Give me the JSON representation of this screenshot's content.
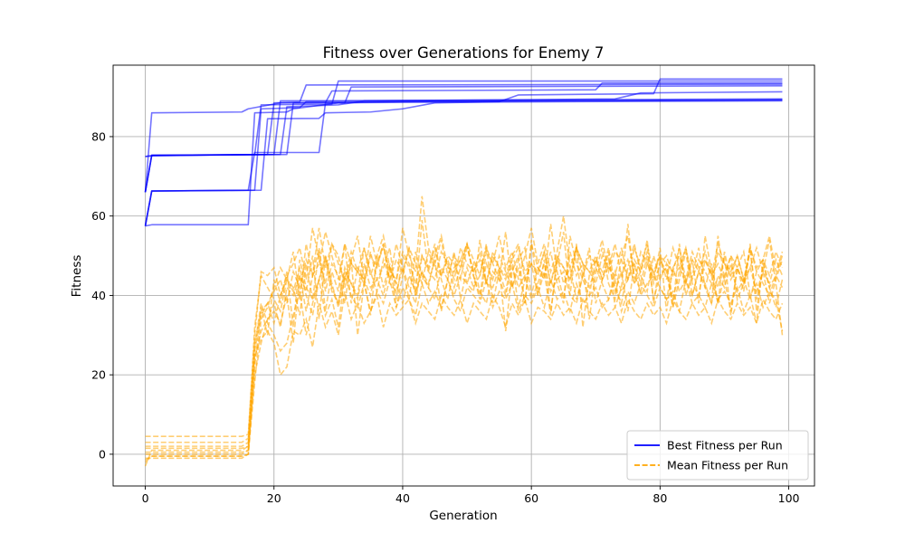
{
  "chart_data": {
    "type": "line",
    "title": "Fitness over Generations for Enemy 7",
    "xlabel": "Generation",
    "ylabel": "Fitness",
    "xlim": [
      -5,
      104
    ],
    "ylim": [
      -8,
      98
    ],
    "xticks": [
      0,
      20,
      40,
      60,
      80,
      100
    ],
    "yticks": [
      0,
      20,
      40,
      60,
      80
    ],
    "grid": true,
    "legend_position": "bottom-right",
    "legend": [
      {
        "label": "Best Fitness per Run",
        "color": "#0000ff",
        "style": "solid"
      },
      {
        "label": "Mean Fitness per Run",
        "color": "#ffa500",
        "style": "dashed"
      }
    ],
    "best_color": "#0000ff",
    "mean_color": "#ffa500",
    "generations": 100,
    "best_runs": [
      [
        [
          0,
          75
        ],
        [
          1,
          75.2
        ],
        [
          17,
          75.5
        ],
        [
          18,
          88
        ],
        [
          29,
          88.2
        ],
        [
          30,
          94
        ],
        [
          99,
          94
        ]
      ],
      [
        [
          0,
          66
        ],
        [
          1,
          86
        ],
        [
          15,
          86.2
        ],
        [
          16,
          87
        ],
        [
          21,
          88.5
        ],
        [
          99,
          89
        ]
      ],
      [
        [
          0,
          57.5
        ],
        [
          1,
          57.8
        ],
        [
          16,
          57.8
        ],
        [
          17,
          86
        ],
        [
          22,
          86.2
        ],
        [
          23,
          87
        ],
        [
          30,
          88.5
        ],
        [
          40,
          88.8
        ],
        [
          99,
          89.2
        ]
      ],
      [
        [
          0,
          57.5
        ],
        [
          1,
          66.3
        ],
        [
          17,
          66.5
        ],
        [
          18,
          87
        ],
        [
          24,
          87.3
        ],
        [
          25,
          88.8
        ],
        [
          99,
          89.3
        ]
      ],
      [
        [
          0,
          66
        ],
        [
          1,
          75.3
        ],
        [
          20,
          75.5
        ],
        [
          21,
          89
        ],
        [
          99,
          89.5
        ]
      ],
      [
        [
          0,
          57.5
        ],
        [
          1,
          66.3
        ],
        [
          16,
          66.5
        ],
        [
          17,
          76
        ],
        [
          27,
          76
        ],
        [
          28,
          88.5
        ],
        [
          31,
          88.5
        ],
        [
          32,
          92.5
        ],
        [
          99,
          92.8
        ]
      ],
      [
        [
          0,
          66
        ],
        [
          1,
          75.3
        ],
        [
          22,
          75.5
        ],
        [
          23,
          88.5
        ],
        [
          28,
          88.6
        ],
        [
          29,
          91.5
        ],
        [
          70,
          91.8
        ],
        [
          71,
          93.5
        ],
        [
          99,
          93.5
        ]
      ],
      [
        [
          0,
          75
        ],
        [
          1,
          75.2
        ],
        [
          19,
          75.5
        ],
        [
          20,
          88.5
        ],
        [
          24,
          88.7
        ],
        [
          25,
          93
        ],
        [
          99,
          93.2
        ]
      ],
      [
        [
          0,
          57.5
        ],
        [
          1,
          66.3
        ],
        [
          18,
          66.5
        ],
        [
          19,
          84.5
        ],
        [
          27,
          84.6
        ],
        [
          28,
          86
        ],
        [
          35,
          86.2
        ],
        [
          40,
          87
        ],
        [
          45,
          88.5
        ],
        [
          55,
          88.8
        ],
        [
          58,
          90.5
        ],
        [
          79,
          90.8
        ],
        [
          80,
          94.5
        ],
        [
          99,
          94.5
        ]
      ],
      [
        [
          0,
          66
        ],
        [
          1,
          75.3
        ],
        [
          21,
          75.5
        ],
        [
          22,
          87.5
        ],
        [
          30,
          88
        ],
        [
          34,
          89
        ],
        [
          60,
          89.3
        ],
        [
          73,
          89.5
        ],
        [
          77,
          91
        ],
        [
          99,
          91.3
        ]
      ]
    ],
    "mean_runs": [
      [
        -1,
        -1,
        -1,
        -1,
        -1,
        -1,
        -1,
        -1,
        -1,
        -1,
        -1,
        -1,
        -1,
        -1,
        -1,
        -1,
        0,
        24,
        31,
        34,
        36,
        33,
        40,
        28,
        45,
        41,
        50,
        34,
        50,
        43,
        37,
        44,
        49,
        30,
        43,
        51,
        44,
        47,
        52,
        39,
        50,
        47,
        40,
        59,
        46,
        52,
        44,
        39,
        47,
        49,
        43,
        41,
        54,
        43,
        42,
        47,
        31,
        46,
        50,
        38,
        54,
        40,
        49,
        36,
        48,
        56,
        40,
        53,
        32,
        45,
        49,
        44,
        51,
        37,
        42,
        58,
        43,
        46,
        54,
        38,
        49,
        46,
        37,
        53,
        40,
        45,
        52,
        42,
        38,
        55,
        44,
        36,
        47,
        51,
        40,
        33,
        49,
        42,
        37,
        44
      ],
      [
        0,
        0,
        0,
        0,
        0,
        0,
        0,
        0,
        0,
        0,
        0,
        0,
        0,
        0,
        0,
        0,
        1,
        20,
        28,
        34,
        38,
        32,
        42,
        40,
        45,
        36,
        45,
        52,
        41,
        48,
        45,
        38,
        49,
        55,
        44,
        40,
        48,
        53,
        43,
        41,
        47,
        39,
        51,
        45,
        42,
        50,
        55,
        47,
        46,
        49,
        53,
        45,
        40,
        51,
        48,
        44,
        56,
        42,
        47,
        38,
        53,
        47,
        44,
        58,
        46,
        39,
        51,
        45,
        48,
        34,
        46,
        52,
        43,
        39,
        50,
        55,
        45,
        41,
        48,
        44,
        52,
        36,
        47,
        50,
        43,
        49,
        38,
        55,
        46,
        42,
        50,
        35,
        47,
        43,
        51,
        39,
        46,
        54,
        43,
        30
      ],
      [
        2,
        2,
        2,
        2,
        2,
        2,
        2,
        2,
        2,
        2,
        2,
        2,
        2,
        2,
        2,
        2,
        3,
        28,
        36,
        38,
        33,
        40,
        44,
        42,
        35,
        48,
        39,
        44,
        50,
        42,
        38,
        47,
        43,
        40,
        52,
        46,
        41,
        49,
        44,
        53,
        47,
        42,
        38,
        50,
        46,
        44,
        51,
        48,
        42,
        47,
        53,
        45,
        39,
        48,
        44,
        50,
        46,
        42,
        49,
        52,
        40,
        47,
        45,
        51,
        43,
        38,
        55,
        48,
        44,
        40,
        49,
        46,
        52,
        42,
        38,
        47,
        53,
        45,
        41,
        50,
        44,
        48,
        39,
        46,
        52,
        43,
        40,
        49,
        45,
        38,
        51,
        44,
        47,
        41,
        53,
        36,
        48,
        42,
        45,
        50
      ],
      [
        4.5,
        4.5,
        4.5,
        4.5,
        4.5,
        4.5,
        4.5,
        4.5,
        4.5,
        4.5,
        4.5,
        4.5,
        4.5,
        4.5,
        4.5,
        4.5,
        5,
        30,
        46,
        45,
        47,
        40,
        45,
        48,
        52,
        44,
        57,
        49,
        43,
        53,
        50,
        42,
        48,
        46,
        44,
        55,
        48,
        52,
        46,
        44,
        51,
        48,
        43,
        50,
        47,
        53,
        45,
        49,
        44,
        52,
        48,
        46,
        51,
        43,
        50,
        47,
        44,
        49,
        52,
        46,
        48,
        45,
        51,
        43,
        50,
        47,
        44,
        52,
        48,
        46,
        43,
        50,
        47,
        45,
        52,
        44,
        49,
        46,
        51,
        43,
        48,
        50,
        45,
        47,
        52,
        44,
        49,
        46,
        43,
        51,
        48,
        45,
        50,
        44,
        47,
        52,
        46,
        43,
        49,
        45
      ],
      [
        -3,
        1,
        1,
        1,
        1,
        1,
        1,
        1,
        1,
        1,
        1,
        1,
        1,
        1,
        1,
        1,
        2,
        26,
        35,
        38,
        41,
        44,
        38,
        46,
        42,
        49,
        45,
        57,
        47,
        53,
        48,
        44,
        51,
        46,
        43,
        50,
        47,
        53,
        44,
        49,
        46,
        52,
        48,
        43,
        51,
        47,
        45,
        50,
        48,
        44,
        52,
        46,
        49,
        43,
        51,
        47,
        45,
        50,
        53,
        44,
        48,
        46,
        51,
        43,
        49,
        47,
        44,
        52,
        48,
        46,
        50,
        44,
        47,
        53,
        45,
        49,
        43,
        51,
        48,
        46,
        50,
        44,
        52,
        47,
        43,
        49,
        46,
        51,
        45,
        48,
        44,
        50,
        47,
        43,
        52,
        46,
        49,
        45,
        51,
        47
      ],
      [
        -2,
        -0.5,
        -0.5,
        -0.5,
        -0.5,
        -0.5,
        -0.5,
        -0.5,
        -0.5,
        -0.5,
        -0.5,
        -0.5,
        -0.5,
        -0.5,
        -0.5,
        -0.5,
        0,
        18,
        34,
        37,
        42,
        47,
        44,
        51,
        39,
        53,
        45,
        48,
        56,
        50,
        44,
        53,
        48,
        46,
        52,
        45,
        50,
        55,
        47,
        43,
        57,
        50,
        46,
        65,
        52,
        48,
        54,
        45,
        50,
        47,
        53,
        49,
        45,
        52,
        48,
        55,
        47,
        51,
        44,
        50,
        57,
        48,
        53,
        46,
        51,
        60,
        47,
        52,
        45,
        50,
        48,
        54,
        46,
        51,
        49,
        44,
        52,
        47,
        53,
        45,
        50,
        48,
        46,
        52,
        44,
        51,
        47,
        49,
        45,
        53,
        48,
        46,
        50,
        44,
        52,
        47,
        49,
        55,
        46,
        51
      ],
      [
        3,
        3,
        3,
        3,
        3,
        3,
        3,
        3,
        3,
        3,
        3,
        3,
        3,
        3,
        3,
        3,
        4,
        32,
        45,
        42,
        39,
        36,
        44,
        41,
        47,
        40,
        35,
        44,
        49,
        41,
        38,
        46,
        43,
        39,
        48,
        42,
        44,
        40,
        47,
        43,
        38,
        45,
        41,
        46,
        42,
        39,
        47,
        44,
        40,
        45,
        43,
        48,
        41,
        38,
        46,
        44,
        40,
        47,
        42,
        45,
        39,
        43,
        48,
        41,
        44,
        46,
        40,
        38,
        45,
        42,
        47,
        43,
        39,
        46,
        41,
        44,
        48,
        40,
        43,
        45,
        42,
        39,
        47,
        41,
        44,
        40,
        46,
        43,
        38,
        45,
        42,
        48,
        41,
        44,
        39,
        46,
        43,
        40,
        45,
        42
      ],
      [
        0.5,
        0.5,
        0.5,
        0.5,
        0.5,
        0.5,
        0.5,
        0.5,
        0.5,
        0.5,
        0.5,
        0.5,
        0.5,
        0.5,
        0.5,
        0.5,
        1,
        25,
        29,
        31,
        28,
        20,
        22,
        31,
        30,
        34,
        27,
        38,
        32,
        36,
        30,
        41,
        34,
        38,
        33,
        36,
        40,
        32,
        38,
        35,
        37,
        39,
        33,
        38,
        36,
        34,
        40,
        37,
        35,
        39,
        33,
        38,
        36,
        34,
        40,
        37,
        32,
        38,
        35,
        39,
        33,
        37,
        36,
        34,
        38,
        35,
        37,
        33,
        39,
        36,
        34,
        38,
        35,
        37,
        33,
        39,
        36,
        34,
        38,
        35,
        37,
        33,
        39,
        36,
        34,
        38,
        35,
        37,
        33,
        39,
        36,
        34,
        38,
        35,
        37,
        33,
        39,
        36,
        34,
        38
      ],
      [
        1.5,
        1.5,
        1.5,
        1.5,
        1.5,
        1.5,
        1.5,
        1.5,
        1.5,
        1.5,
        1.5,
        1.5,
        1.5,
        1.5,
        1.5,
        1.5,
        2,
        27,
        38,
        33,
        30,
        26,
        28,
        35,
        41,
        30,
        38,
        44,
        35,
        39,
        32,
        45,
        40,
        37,
        43,
        36,
        41,
        38,
        44,
        37,
        42,
        39,
        35,
        43,
        38,
        41,
        37,
        44,
        39,
        36,
        42,
        40,
        38,
        44,
        37,
        41,
        39,
        43,
        36,
        40,
        38,
        42,
        37,
        44,
        39,
        41,
        36,
        43,
        38,
        40,
        42,
        37,
        39,
        44,
        36,
        41,
        38,
        43,
        40,
        37,
        42,
        39,
        41,
        36,
        44,
        38,
        40,
        37,
        43,
        39,
        41,
        38,
        42,
        36,
        40,
        43,
        37,
        41,
        39,
        31
      ],
      [
        -1.5,
        -0.5,
        -0.5,
        -0.5,
        -0.5,
        -0.5,
        -0.5,
        -0.5,
        -0.5,
        -0.5,
        -0.5,
        -0.5,
        -0.5,
        -0.5,
        -0.5,
        -0.5,
        0,
        22,
        37,
        30,
        44,
        38,
        46,
        32,
        49,
        42,
        39,
        51,
        36,
        46,
        41,
        53,
        38,
        47,
        44,
        35,
        50,
        42,
        48,
        37,
        45,
        52,
        40,
        46,
        43,
        49,
        36,
        44,
        51,
        39,
        47,
        42,
        45,
        53,
        38,
        46,
        41,
        49,
        37,
        44,
        48,
        40,
        46,
        35,
        50,
        43,
        47,
        39,
        45,
        52,
        38,
        44,
        49,
        41,
        46,
        36,
        48,
        43,
        50,
        39,
        45,
        47,
        37,
        44,
        51,
        40,
        46,
        42,
        48,
        38,
        45,
        50,
        39,
        43,
        47,
        41,
        46,
        38,
        44,
        49
      ]
    ]
  }
}
